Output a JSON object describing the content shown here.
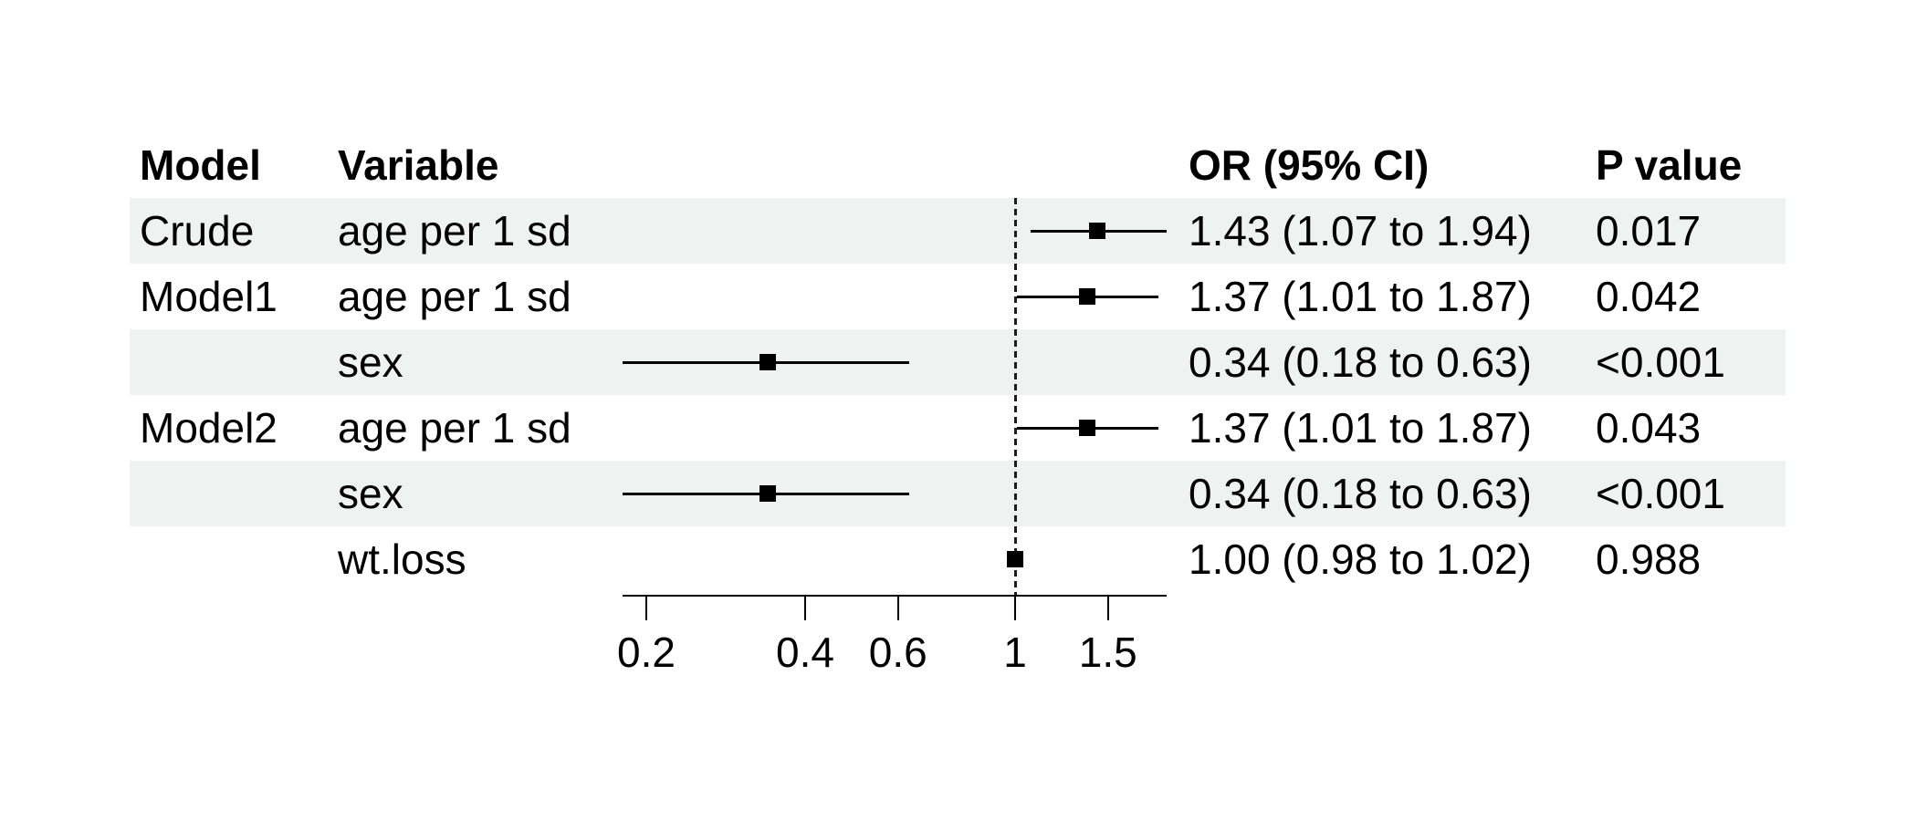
{
  "figure": {
    "kind": "forest plot of odds ratios by model",
    "background": "#ffffff"
  },
  "table": {
    "headers": {
      "model": "Model",
      "variable": "Variable",
      "or_ci": "OR (95% CI)",
      "p": "P value"
    },
    "rows": [
      {
        "model": "Crude",
        "variable": "age per 1 sd",
        "or_ci": "1.43 (1.07 to 1.94)",
        "p": "0.017"
      },
      {
        "model": "Model1",
        "variable": "age per 1 sd",
        "or_ci": "1.37 (1.01 to 1.87)",
        "p": "0.042"
      },
      {
        "model": "",
        "variable": "sex",
        "or_ci": "0.34 (0.18 to 0.63)",
        "p": "<0.001"
      },
      {
        "model": "Model2",
        "variable": "age per 1 sd",
        "or_ci": "1.37 (1.01 to 1.87)",
        "p": "0.043"
      },
      {
        "model": "",
        "variable": "sex",
        "or_ci": "0.34 (0.18 to 0.63)",
        "p": "<0.001"
      },
      {
        "model": "",
        "variable": "wt.loss",
        "or_ci": "1.00 (0.98 to 1.02)",
        "p": "0.988"
      }
    ]
  },
  "chart_data": {
    "type": "scatter",
    "subtype": "forest-plot",
    "x_scale": "log",
    "title": "",
    "xlabel": "",
    "ylabel": "",
    "rows": [
      {
        "label": "Crude age per 1 sd",
        "est": 1.43,
        "low": 1.07,
        "high": 1.94
      },
      {
        "label": "Model1 age per 1 sd",
        "est": 1.37,
        "low": 1.01,
        "high": 1.87
      },
      {
        "label": "Model1 sex",
        "est": 0.34,
        "low": 0.18,
        "high": 0.63
      },
      {
        "label": "Model2 age per 1 sd",
        "est": 1.37,
        "low": 1.01,
        "high": 1.87
      },
      {
        "label": "Model2 sex",
        "est": 0.34,
        "low": 0.18,
        "high": 0.63
      },
      {
        "label": "Model2 wt.loss",
        "est": 1.0,
        "low": 0.98,
        "high": 1.02
      }
    ],
    "axis": {
      "ticks": [
        0.2,
        0.4,
        0.6,
        1,
        1.5
      ],
      "tick_labels": [
        "0.2",
        "0.4",
        "0.6",
        "1",
        "1.5"
      ],
      "range": [
        0.18,
        1.94
      ],
      "ref_line": 1,
      "grid": false
    }
  },
  "colors": {
    "band": "#eef2f1",
    "text": "#000000",
    "line": "#000000",
    "ref_line": "#1c1c1c"
  }
}
